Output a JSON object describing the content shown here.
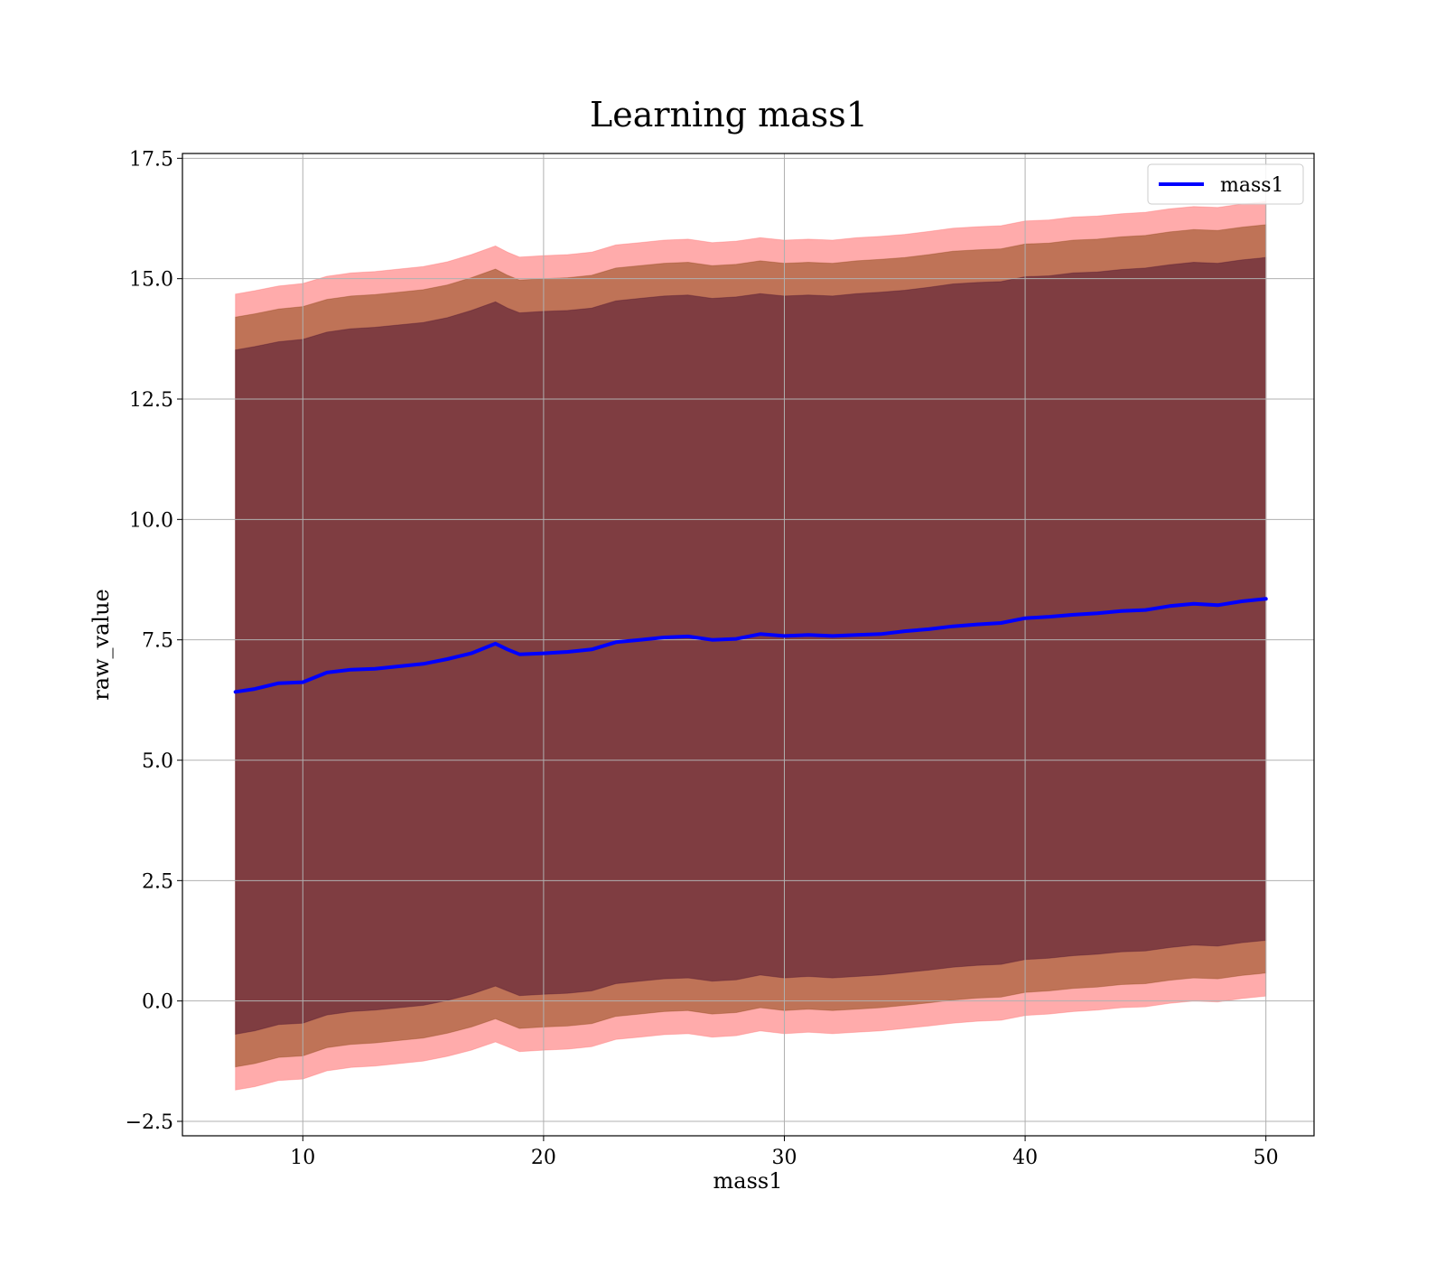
{
  "chart_data": {
    "type": "line",
    "title": "Learning mass1",
    "xlabel": "mass1",
    "ylabel": "raw_value",
    "xlim": [
      5,
      52
    ],
    "ylim": [
      -2.8,
      17.6
    ],
    "xticks": [
      10,
      20,
      30,
      40,
      50
    ],
    "xtick_labels": [
      "10",
      "20",
      "30",
      "40",
      "50"
    ],
    "yticks": [
      -2.5,
      0,
      2.5,
      5,
      7.5,
      10,
      12.5,
      15,
      17.5
    ],
    "ytick_labels": [
      "−2.5",
      "0.0",
      "2.5",
      "5.0",
      "7.5",
      "10.0",
      "12.5",
      "15.0",
      "17.5"
    ],
    "grid": true,
    "legend_position": "top-right",
    "series": [
      {
        "name": "mass1",
        "color": "#0000ff",
        "x": [
          7.2,
          8,
          9,
          10,
          11,
          12,
          13,
          14,
          15,
          16,
          17,
          18,
          18.5,
          19,
          20,
          21,
          22,
          23,
          24,
          25,
          26,
          27,
          28,
          29,
          30,
          31,
          32,
          33,
          34,
          35,
          36,
          37,
          38,
          39,
          40,
          41,
          42,
          43,
          44,
          45,
          46,
          47,
          48,
          49,
          50
        ],
        "y": [
          6.42,
          6.48,
          6.6,
          6.62,
          6.82,
          6.88,
          6.9,
          6.95,
          7.0,
          7.1,
          7.22,
          7.42,
          7.3,
          7.2,
          7.22,
          7.25,
          7.3,
          7.45,
          7.5,
          7.55,
          7.57,
          7.5,
          7.52,
          7.62,
          7.58,
          7.6,
          7.58,
          7.6,
          7.62,
          7.68,
          7.72,
          7.78,
          7.82,
          7.85,
          7.95,
          7.98,
          8.02,
          8.05,
          8.1,
          8.12,
          8.2,
          8.25,
          8.22,
          8.3,
          8.35
        ]
      }
    ],
    "bands": [
      {
        "level": "outer",
        "color": "#ff6666",
        "x": [
          7.2,
          8,
          9,
          10,
          11,
          12,
          13,
          14,
          15,
          16,
          17,
          18,
          18.5,
          19,
          20,
          21,
          22,
          23,
          24,
          25,
          26,
          27,
          28,
          29,
          30,
          31,
          32,
          33,
          34,
          35,
          36,
          37,
          38,
          39,
          40,
          41,
          42,
          43,
          44,
          45,
          46,
          47,
          48,
          49,
          50
        ],
        "upper": [
          14.68,
          14.75,
          14.85,
          14.9,
          15.05,
          15.12,
          15.15,
          15.2,
          15.25,
          15.35,
          15.5,
          15.68,
          15.55,
          15.45,
          15.48,
          15.5,
          15.55,
          15.7,
          15.75,
          15.8,
          15.82,
          15.75,
          15.78,
          15.85,
          15.8,
          15.82,
          15.8,
          15.85,
          15.88,
          15.92,
          15.98,
          16.05,
          16.08,
          16.1,
          16.2,
          16.22,
          16.28,
          16.3,
          16.35,
          16.38,
          16.45,
          16.5,
          16.48,
          16.55,
          16.6
        ],
        "lower": [
          -1.85,
          -1.78,
          -1.65,
          -1.62,
          -1.45,
          -1.38,
          -1.35,
          -1.3,
          -1.25,
          -1.15,
          -1.02,
          -0.85,
          -0.95,
          -1.05,
          -1.02,
          -1.0,
          -0.95,
          -0.8,
          -0.75,
          -0.7,
          -0.68,
          -0.75,
          -0.72,
          -0.62,
          -0.68,
          -0.65,
          -0.68,
          -0.65,
          -0.62,
          -0.57,
          -0.52,
          -0.46,
          -0.42,
          -0.4,
          -0.3,
          -0.27,
          -0.22,
          -0.19,
          -0.14,
          -0.12,
          -0.05,
          0.0,
          -0.02,
          0.05,
          0.1
        ]
      },
      {
        "level": "middle",
        "color": "#8b4513",
        "x": [
          7.2,
          8,
          9,
          10,
          11,
          12,
          13,
          14,
          15,
          16,
          17,
          18,
          18.5,
          19,
          20,
          21,
          22,
          23,
          24,
          25,
          26,
          27,
          28,
          29,
          30,
          31,
          32,
          33,
          34,
          35,
          36,
          37,
          38,
          39,
          40,
          41,
          42,
          43,
          44,
          45,
          46,
          47,
          48,
          49,
          50
        ],
        "upper": [
          14.2,
          14.27,
          14.37,
          14.42,
          14.57,
          14.64,
          14.67,
          14.72,
          14.77,
          14.87,
          15.02,
          15.2,
          15.07,
          14.97,
          15.0,
          15.02,
          15.07,
          15.22,
          15.27,
          15.32,
          15.34,
          15.27,
          15.3,
          15.37,
          15.32,
          15.34,
          15.32,
          15.37,
          15.4,
          15.44,
          15.5,
          15.57,
          15.6,
          15.62,
          15.72,
          15.74,
          15.8,
          15.82,
          15.87,
          15.9,
          15.97,
          16.02,
          16.0,
          16.07,
          16.12
        ],
        "lower": [
          -1.37,
          -1.3,
          -1.17,
          -1.14,
          -0.97,
          -0.9,
          -0.87,
          -0.82,
          -0.77,
          -0.67,
          -0.54,
          -0.37,
          -0.47,
          -0.57,
          -0.54,
          -0.52,
          -0.47,
          -0.32,
          -0.27,
          -0.22,
          -0.2,
          -0.27,
          -0.24,
          -0.14,
          -0.2,
          -0.17,
          -0.2,
          -0.17,
          -0.14,
          -0.09,
          -0.04,
          0.02,
          0.06,
          0.08,
          0.18,
          0.21,
          0.26,
          0.29,
          0.34,
          0.36,
          0.43,
          0.48,
          0.46,
          0.53,
          0.58
        ]
      },
      {
        "level": "inner",
        "color": "#4b1030",
        "x": [
          7.2,
          8,
          9,
          10,
          11,
          12,
          13,
          14,
          15,
          16,
          17,
          18,
          18.5,
          19,
          20,
          21,
          22,
          23,
          24,
          25,
          26,
          27,
          28,
          29,
          30,
          31,
          32,
          33,
          34,
          35,
          36,
          37,
          38,
          39,
          40,
          41,
          42,
          43,
          44,
          45,
          46,
          47,
          48,
          49,
          50
        ],
        "upper": [
          13.52,
          13.59,
          13.69,
          13.74,
          13.89,
          13.96,
          13.99,
          14.04,
          14.09,
          14.19,
          14.34,
          14.52,
          14.39,
          14.29,
          14.32,
          14.34,
          14.39,
          14.54,
          14.59,
          14.64,
          14.66,
          14.59,
          14.62,
          14.69,
          14.64,
          14.66,
          14.64,
          14.69,
          14.72,
          14.76,
          14.82,
          14.89,
          14.92,
          14.94,
          15.04,
          15.06,
          15.12,
          15.14,
          15.19,
          15.22,
          15.29,
          15.34,
          15.32,
          15.39,
          15.44
        ],
        "lower": [
          -0.69,
          -0.62,
          -0.49,
          -0.46,
          -0.29,
          -0.22,
          -0.19,
          -0.14,
          -0.09,
          0.01,
          0.14,
          0.31,
          0.21,
          0.11,
          0.14,
          0.16,
          0.21,
          0.36,
          0.41,
          0.46,
          0.48,
          0.41,
          0.44,
          0.54,
          0.48,
          0.51,
          0.48,
          0.51,
          0.54,
          0.59,
          0.64,
          0.7,
          0.74,
          0.76,
          0.86,
          0.89,
          0.94,
          0.97,
          1.02,
          1.04,
          1.11,
          1.16,
          1.14,
          1.21,
          1.26
        ]
      }
    ]
  }
}
